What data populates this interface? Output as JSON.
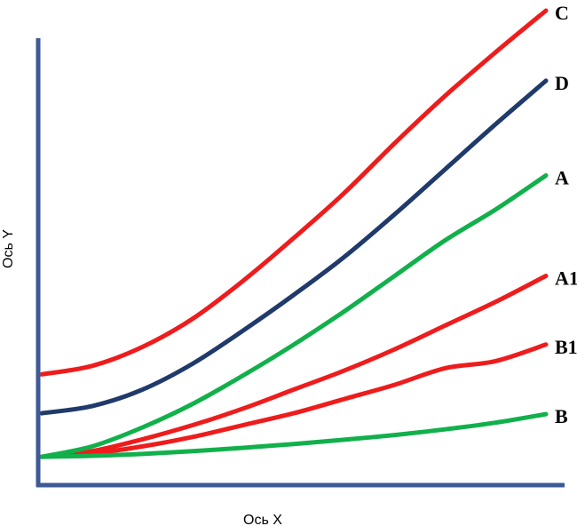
{
  "chart_data": {
    "type": "line",
    "xlabel": "Ось X",
    "ylabel": "Ось Y",
    "xlim": [
      0,
      1
    ],
    "ylim": [
      0,
      1
    ],
    "grid": false,
    "x": [
      0,
      0.1,
      0.2,
      0.3,
      0.4,
      0.5,
      0.6,
      0.7,
      0.8,
      0.9,
      1.0
    ],
    "series": [
      {
        "name": "C",
        "color": "#ee1c1c",
        "values": [
          0.232,
          0.25,
          0.29,
          0.35,
          0.43,
          0.52,
          0.615,
          0.72,
          0.82,
          0.912,
          1.0
        ]
      },
      {
        "name": "D",
        "color": "#1f3a6b",
        "values": [
          0.15,
          0.165,
          0.2,
          0.255,
          0.325,
          0.4,
          0.48,
          0.57,
          0.665,
          0.76,
          0.852
        ]
      },
      {
        "name": "A",
        "color": "#11b04b",
        "values": [
          0.058,
          0.08,
          0.12,
          0.17,
          0.23,
          0.295,
          0.365,
          0.44,
          0.515,
          0.58,
          0.652
        ]
      },
      {
        "name": "A1",
        "color": "#ee1c1c",
        "values": [
          0.058,
          0.07,
          0.095,
          0.125,
          0.16,
          0.2,
          0.24,
          0.285,
          0.335,
          0.385,
          0.44
        ]
      },
      {
        "name": "B1",
        "color": "#ee1c1c",
        "values": [
          0.058,
          0.065,
          0.08,
          0.1,
          0.125,
          0.15,
          0.18,
          0.21,
          0.245,
          0.26,
          0.295
        ]
      },
      {
        "name": "B",
        "color": "#11b04b",
        "values": [
          0.058,
          0.06,
          0.064,
          0.07,
          0.077,
          0.085,
          0.094,
          0.104,
          0.116,
          0.13,
          0.148
        ]
      }
    ]
  }
}
